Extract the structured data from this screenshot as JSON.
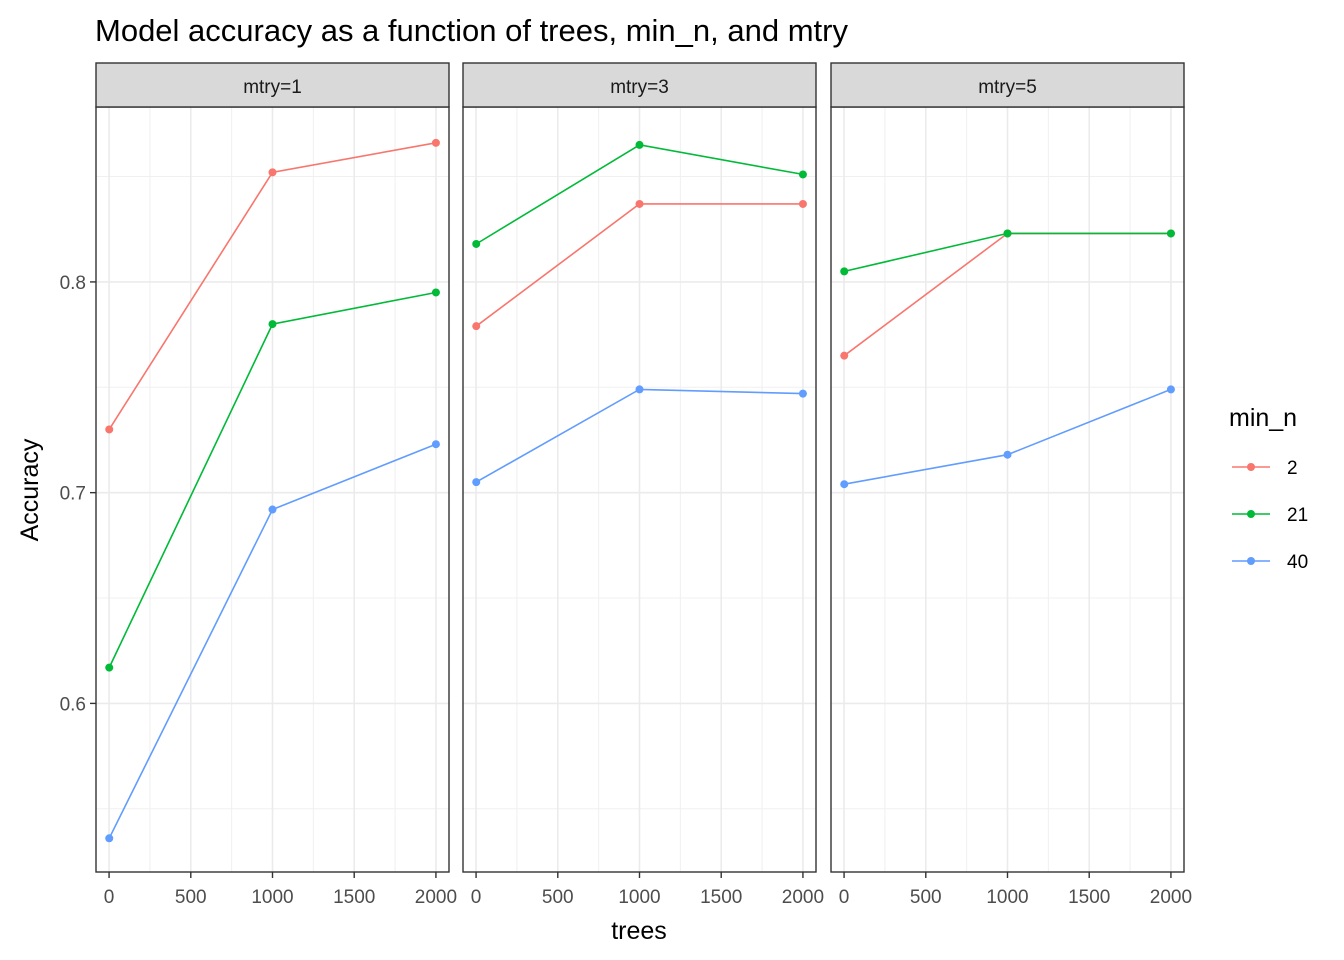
{
  "chart_data": {
    "type": "line",
    "title": "Model accuracy as a function of trees, min_n, and mtry",
    "xlabel": "trees",
    "ylabel": "Accuracy",
    "x_ticks": [
      0,
      500,
      1000,
      1500,
      2000
    ],
    "y_ticks": [
      0.6,
      0.7,
      0.8
    ],
    "x_tick_labels": [
      "0",
      "500",
      "1000",
      "1500",
      "2000"
    ],
    "y_tick_labels": [
      "0.6",
      "0.7",
      "0.8"
    ],
    "xlim": [
      -80,
      2080
    ],
    "ylim": [
      0.52,
      0.883
    ],
    "grid": true,
    "legend": {
      "title": "min_n",
      "position": "right",
      "entries": [
        {
          "label": "2",
          "color": "#F8766D"
        },
        {
          "label": "21",
          "color": "#00BA38"
        },
        {
          "label": "40",
          "color": "#619CFF"
        }
      ]
    },
    "panels": [
      {
        "strip": "mtry=1",
        "series": [
          {
            "name": "2",
            "color": "#F8766D",
            "x": [
              1,
              1000,
              2000
            ],
            "y": [
              0.73,
              0.852,
              0.866
            ]
          },
          {
            "name": "21",
            "color": "#00BA38",
            "x": [
              1,
              1000,
              2000
            ],
            "y": [
              0.617,
              0.78,
              0.795
            ]
          },
          {
            "name": "40",
            "color": "#619CFF",
            "x": [
              1,
              1000,
              2000
            ],
            "y": [
              0.536,
              0.692,
              0.723
            ]
          }
        ]
      },
      {
        "strip": "mtry=3",
        "series": [
          {
            "name": "2",
            "color": "#F8766D",
            "x": [
              1,
              1000,
              2000
            ],
            "y": [
              0.779,
              0.837,
              0.837
            ]
          },
          {
            "name": "21",
            "color": "#00BA38",
            "x": [
              1,
              1000,
              2000
            ],
            "y": [
              0.818,
              0.865,
              0.851
            ]
          },
          {
            "name": "40",
            "color": "#619CFF",
            "x": [
              1,
              1000,
              2000
            ],
            "y": [
              0.705,
              0.749,
              0.747
            ]
          }
        ]
      },
      {
        "strip": "mtry=5",
        "series": [
          {
            "name": "2",
            "color": "#F8766D",
            "x": [
              1,
              1000,
              2000
            ],
            "y": [
              0.765,
              0.823,
              0.823
            ]
          },
          {
            "name": "21",
            "color": "#00BA38",
            "x": [
              1,
              1000,
              2000
            ],
            "y": [
              0.805,
              0.823,
              0.823
            ]
          },
          {
            "name": "40",
            "color": "#619CFF",
            "x": [
              1,
              1000,
              2000
            ],
            "y": [
              0.704,
              0.718,
              0.749
            ]
          }
        ]
      }
    ]
  }
}
